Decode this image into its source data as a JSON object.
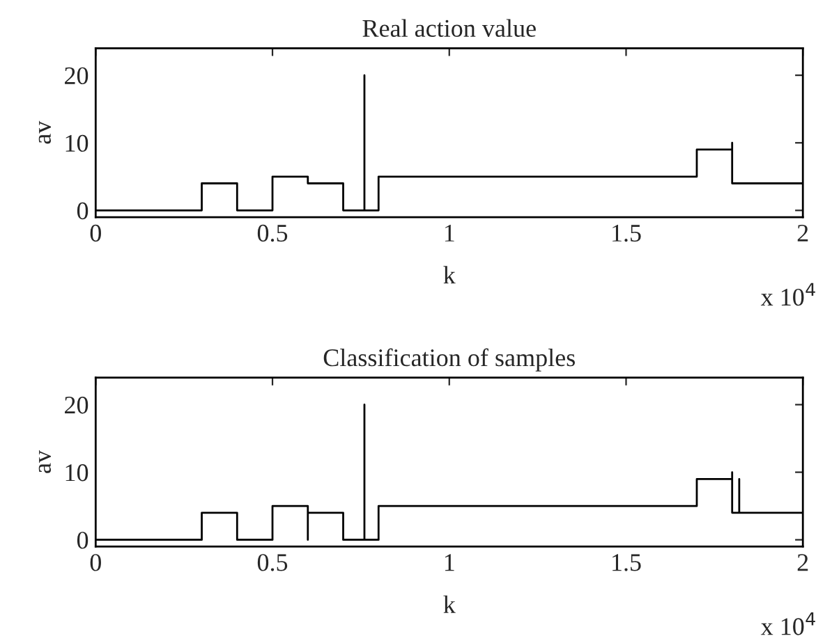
{
  "chart_data": [
    {
      "type": "step",
      "title": "Real action value",
      "xlabel": "k",
      "ylabel": "av",
      "annotations": [
        "x 10$^{4}$"
      ],
      "series": [
        {
          "color": "#000000",
          "x": [
            0,
            0.3,
            0.4,
            0.5,
            0.6,
            0.7,
            0.76,
            0.76,
            0.8,
            1.7,
            1.8,
            1.8,
            2
          ],
          "values": [
            0,
            4,
            0,
            5,
            4,
            0,
            20,
            0,
            5,
            9,
            10,
            4,
            4
          ]
        }
      ],
      "xlim": [
        0,
        2
      ],
      "xticks": [
        0,
        0.5,
        1,
        1.5,
        2
      ],
      "ylim": [
        -1,
        24
      ],
      "yticks": [
        0,
        10,
        20
      ],
      "grid": false,
      "legend": false
    },
    {
      "type": "step",
      "title": "Classification of samples",
      "xlabel": "k",
      "ylabel": "av",
      "annotations": [
        "x 10$^{4}$"
      ],
      "series": [
        {
          "color": "#000000",
          "x": [
            0,
            0.3,
            0.4,
            0.5,
            0.6,
            0.6,
            0.7,
            0.76,
            0.76,
            0.8,
            1.7,
            1.8,
            1.8,
            1.82,
            1.82,
            2
          ],
          "values": [
            0,
            4,
            0,
            5,
            0,
            4,
            0,
            20,
            0,
            5,
            9,
            10,
            4,
            9,
            4,
            4
          ]
        }
      ],
      "xlim": [
        0,
        2
      ],
      "xticks": [
        0,
        0.5,
        1,
        1.5,
        2
      ],
      "ylim": [
        -1,
        24
      ],
      "yticks": [
        0,
        10,
        20
      ],
      "grid": false,
      "legend": false
    }
  ]
}
